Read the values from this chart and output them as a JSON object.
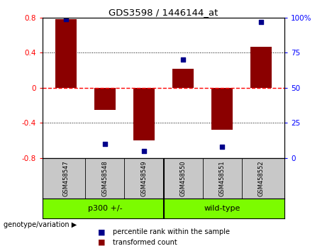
{
  "title": "GDS3598 / 1446144_at",
  "samples": [
    "GSM458547",
    "GSM458548",
    "GSM458549",
    "GSM458550",
    "GSM458551",
    "GSM458552"
  ],
  "red_bars": [
    0.78,
    -0.25,
    -0.6,
    0.22,
    -0.48,
    0.47
  ],
  "blue_dots": [
    99,
    10,
    5,
    70,
    8,
    97
  ],
  "ylim_left": [
    -0.8,
    0.8
  ],
  "ylim_right": [
    0,
    100
  ],
  "yticks_left": [
    -0.8,
    -0.4,
    0,
    0.4,
    0.8
  ],
  "yticks_right": [
    0,
    25,
    50,
    75,
    100
  ],
  "ytick_labels_left": [
    "-0.8",
    "-0.4",
    "0",
    "0.4",
    "0.8"
  ],
  "ytick_labels_right": [
    "0",
    "25",
    "50",
    "75",
    "100%"
  ],
  "group1_label": "p300 +/-",
  "group2_label": "wild-type",
  "group_label": "genotype/variation",
  "bar_color": "#8B0000",
  "dot_color": "#00008B",
  "legend_red": "transformed count",
  "legend_blue": "percentile rank within the sample",
  "zero_line_color": "#FF0000",
  "background_color": "#ffffff",
  "sample_bg": "#C8C8C8",
  "group_bg": "#7CFC00"
}
